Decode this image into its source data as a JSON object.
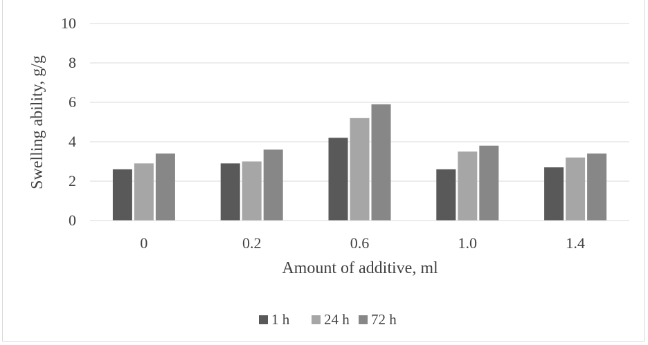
{
  "chart_data": {
    "type": "bar",
    "title": "",
    "xlabel": "Amount of additive, ml",
    "ylabel": "Swelling ability, g/g",
    "categories": [
      "0",
      "0.2",
      "0.6",
      "1.0",
      "1.4"
    ],
    "ylim": [
      0,
      10
    ],
    "yticks": [
      "0",
      "2",
      "4",
      "6",
      "8",
      "10"
    ],
    "grid": true,
    "legend_position": "bottom",
    "series": [
      {
        "name": "1 h",
        "color": "#595959",
        "values": [
          2.6,
          2.9,
          4.2,
          2.6,
          2.7
        ]
      },
      {
        "name": "24 h",
        "color": "#a6a6a6",
        "values": [
          2.9,
          3.0,
          5.2,
          3.5,
          3.2
        ]
      },
      {
        "name": "72 h",
        "color": "#878787",
        "values": [
          3.4,
          3.6,
          5.9,
          3.8,
          3.4
        ]
      }
    ]
  }
}
